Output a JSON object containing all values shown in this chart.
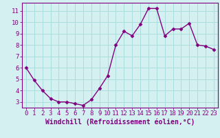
{
  "x": [
    0,
    1,
    2,
    3,
    4,
    5,
    6,
    7,
    8,
    9,
    10,
    11,
    12,
    13,
    14,
    15,
    16,
    17,
    18,
    19,
    20,
    21,
    22,
    23
  ],
  "y": [
    6.0,
    4.9,
    4.0,
    3.3,
    3.0,
    3.0,
    2.85,
    2.7,
    3.2,
    4.2,
    5.3,
    8.0,
    9.2,
    8.8,
    9.8,
    11.2,
    11.2,
    8.8,
    9.4,
    9.4,
    9.9,
    8.0,
    7.9,
    7.6
  ],
  "line_color": "#800080",
  "marker": "D",
  "marker_size": 2.5,
  "xlabel": "Windchill (Refroidissement éolien,°C)",
  "xlabel_fontsize": 7,
  "bg_color": "#d4f0f0",
  "grid_color": "#aadddd",
  "ylim": [
    2.5,
    11.7
  ],
  "yticks": [
    3,
    4,
    5,
    6,
    7,
    8,
    9,
    10,
    11
  ],
  "xticks": [
    0,
    1,
    2,
    3,
    4,
    5,
    6,
    7,
    8,
    9,
    10,
    11,
    12,
    13,
    14,
    15,
    16,
    17,
    18,
    19,
    20,
    21,
    22,
    23
  ],
  "tick_fontsize": 6.5,
  "spine_color": "#800080",
  "line_width": 1.0
}
